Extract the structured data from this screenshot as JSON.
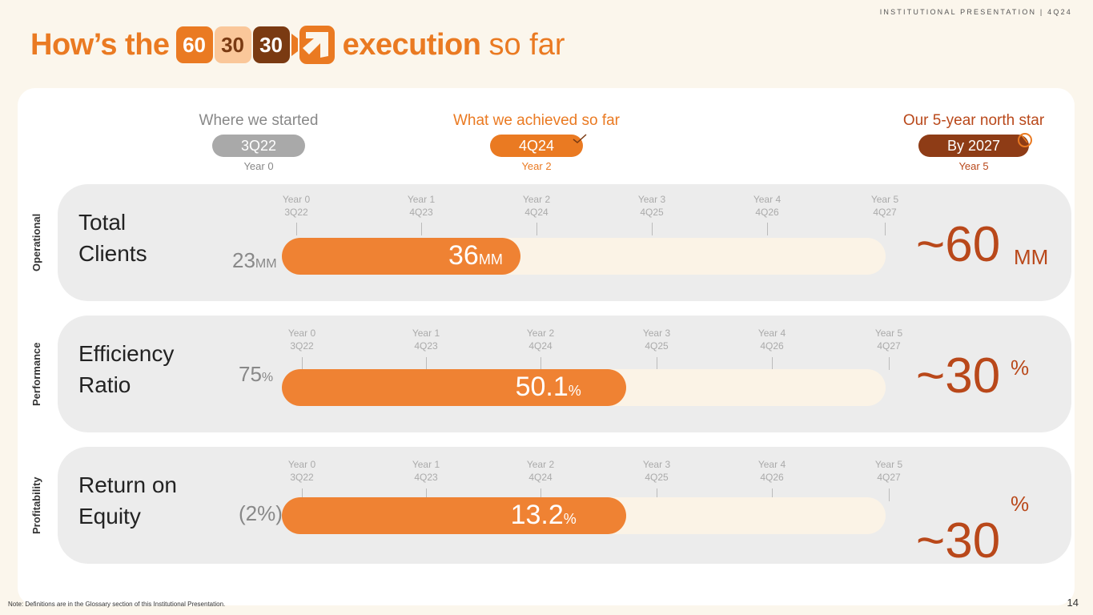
{
  "header": {
    "doc_label": "INSTITUTIONAL PRESENTATION | 4Q24"
  },
  "title": {
    "prefix": "How’s the",
    "logo": [
      "60",
      "30",
      "30"
    ],
    "suffix_bold": "execution",
    "suffix_light": "so far"
  },
  "columns": {
    "started": {
      "label": "Where we started",
      "pill": "3Q22",
      "year": "Year 0",
      "color": "#a9a9a9"
    },
    "achieved": {
      "label": "What we achieved so far",
      "pill": "4Q24",
      "year": "Year 2",
      "color": "#ea7a22"
    },
    "target": {
      "label": "Our 5-year north star",
      "pill": "By 2027",
      "year": "Year 5",
      "color": "#8e3c16"
    }
  },
  "timeline": [
    {
      "year": "Year 0",
      "quarter": "3Q22"
    },
    {
      "year": "Year 1",
      "quarter": "4Q23"
    },
    {
      "year": "Year 2",
      "quarter": "4Q24"
    },
    {
      "year": "Year 3",
      "quarter": "4Q25"
    },
    {
      "year": "Year 4",
      "quarter": "4Q26"
    },
    {
      "year": "Year 5",
      "quarter": "4Q27"
    }
  ],
  "rows": [
    {
      "category": "Operational",
      "metric_line1": "Total",
      "metric_line2": "Clients",
      "start_value": "23",
      "start_unit": "MM",
      "current_value": "36",
      "current_unit": "MM",
      "target_value": "~60",
      "target_unit": "MM",
      "progress": 0.395
    },
    {
      "category": "Performance",
      "metric_line1": "Efficiency",
      "metric_line2": "Ratio",
      "start_value": "75",
      "start_unit": "%",
      "current_value": "50.1",
      "current_unit": "%",
      "target_value": "~30",
      "target_unit": "%",
      "progress": 0.57
    },
    {
      "category": "Profitability",
      "metric_line1": "Return on",
      "metric_line2": "Equity",
      "start_value": "(2%)",
      "start_unit": "",
      "current_value": "13.2",
      "current_unit": "%",
      "target_value": "~30",
      "target_unit": "%",
      "progress": 0.57
    }
  ],
  "footer": {
    "note": "Note: Definitions are in the Glossary section of this Institutional Presentation.",
    "page_number": "14"
  }
}
